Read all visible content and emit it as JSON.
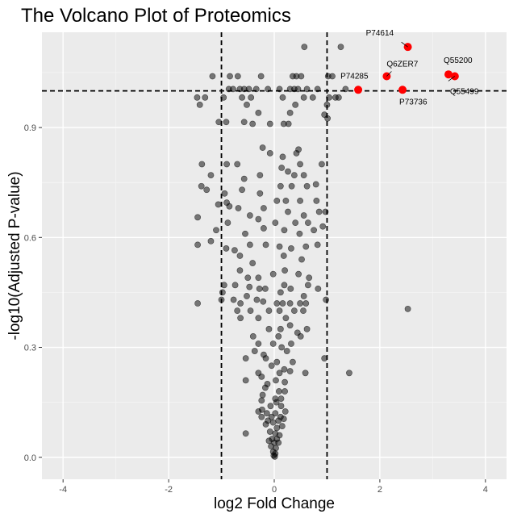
{
  "chart_data": {
    "type": "scatter",
    "title": "The Volcano Plot of Proteomics",
    "xlabel": "log2 Fold Change",
    "ylabel": "-log10(Adjusted P-value)",
    "xlim": [
      -4.4,
      4.4
    ],
    "ylim": [
      -0.06,
      1.16
    ],
    "x_ticks": [
      -4,
      -2,
      0,
      2,
      4
    ],
    "y_ticks": [
      0.0,
      0.3,
      0.6,
      0.9
    ],
    "y_tick_labels": [
      "0.0",
      "0.3",
      "0.6",
      "0.9"
    ],
    "x_tick_labels": [
      "-4",
      "-2",
      "0",
      "2",
      "4"
    ],
    "thresholds": {
      "log2fc": [
        -1,
        1
      ],
      "neg_log10_p": 1.0
    },
    "grid": true,
    "colors": {
      "panel_bg": "#ebebeb",
      "grid_major": "#ffffff",
      "significant": "#ff0000",
      "nonsignificant": "#000000"
    },
    "significant": [
      {
        "label": "P74614",
        "x": 2.53,
        "y": 1.12
      },
      {
        "label": "Q6ZER7",
        "x": 2.13,
        "y": 1.04
      },
      {
        "label": "Q55200",
        "x": 3.3,
        "y": 1.045
      },
      {
        "label": "Q55499",
        "x": 3.42,
        "y": 1.04
      },
      {
        "label": "P74285",
        "x": 1.59,
        "y": 1.003
      },
      {
        "label": "P73736",
        "x": 2.43,
        "y": 1.003
      }
    ],
    "nonsignificant": [
      [
        0.57,
        1.12
      ],
      [
        1.26,
        1.12
      ],
      [
        -1.17,
        1.04
      ],
      [
        -0.84,
        1.04
      ],
      [
        -0.69,
        1.04
      ],
      [
        -0.25,
        1.04
      ],
      [
        0.35,
        1.04
      ],
      [
        0.42,
        1.04
      ],
      [
        0.51,
        1.04
      ],
      [
        1.02,
        1.04
      ],
      [
        1.1,
        1.04
      ],
      [
        -0.86,
        1.005
      ],
      [
        -0.78,
        1.005
      ],
      [
        -0.65,
        1.005
      ],
      [
        -0.57,
        1.005
      ],
      [
        -0.48,
        1.005
      ],
      [
        -0.34,
        1.005
      ],
      [
        -0.12,
        1.005
      ],
      [
        0.1,
        1.005
      ],
      [
        0.3,
        1.005
      ],
      [
        0.38,
        1.005
      ],
      [
        0.45,
        1.005
      ],
      [
        0.62,
        1.005
      ],
      [
        0.82,
        1.005
      ],
      [
        1.35,
        1.005
      ],
      [
        -1.46,
        0.982
      ],
      [
        -1.31,
        0.982
      ],
      [
        -0.96,
        0.982
      ],
      [
        -0.61,
        0.982
      ],
      [
        -0.44,
        0.982
      ],
      [
        0.16,
        0.982
      ],
      [
        0.56,
        0.982
      ],
      [
        0.73,
        0.982
      ],
      [
        1.04,
        0.982
      ],
      [
        1.16,
        0.982
      ],
      [
        1.22,
        0.982
      ],
      [
        -1.41,
        0.962
      ],
      [
        -0.52,
        0.962
      ],
      [
        0.4,
        0.962
      ],
      [
        1.0,
        0.962
      ],
      [
        -0.3,
        0.94
      ],
      [
        0.3,
        0.94
      ],
      [
        0.95,
        0.935
      ],
      [
        -1.05,
        0.915
      ],
      [
        -0.91,
        0.915
      ],
      [
        -0.57,
        0.915
      ],
      [
        -0.41,
        0.91
      ],
      [
        -0.08,
        0.91
      ],
      [
        0.18,
        0.91
      ],
      [
        0.27,
        0.91
      ],
      [
        1.01,
        0.925
      ],
      [
        -0.22,
        0.845
      ],
      [
        0.46,
        0.84
      ],
      [
        -0.08,
        0.83
      ],
      [
        0.16,
        0.82
      ],
      [
        0.42,
        0.83
      ],
      [
        -1.37,
        0.8
      ],
      [
        -1.2,
        0.77
      ],
      [
        -0.9,
        0.8
      ],
      [
        -0.7,
        0.8
      ],
      [
        0.9,
        0.8
      ],
      [
        0.49,
        0.8
      ],
      [
        0.14,
        0.79
      ],
      [
        0.56,
        0.77
      ],
      [
        -0.57,
        0.76
      ],
      [
        -0.27,
        0.77
      ],
      [
        0.26,
        0.78
      ],
      [
        0.38,
        0.77
      ],
      [
        -1.38,
        0.74
      ],
      [
        -1.28,
        0.73
      ],
      [
        -0.94,
        0.72
      ],
      [
        -0.61,
        0.73
      ],
      [
        0.12,
        0.74
      ],
      [
        0.33,
        0.74
      ],
      [
        0.62,
        0.74
      ],
      [
        0.79,
        0.745
      ],
      [
        -0.9,
        0.695
      ],
      [
        -0.27,
        0.72
      ],
      [
        0.05,
        0.7
      ],
      [
        0.22,
        0.7
      ],
      [
        0.49,
        0.7
      ],
      [
        0.8,
        0.7
      ],
      [
        -1.06,
        0.69
      ],
      [
        -0.85,
        0.685
      ],
      [
        -0.68,
        0.68
      ],
      [
        -0.46,
        0.66
      ],
      [
        -0.2,
        0.68
      ],
      [
        0.26,
        0.67
      ],
      [
        0.56,
        0.66
      ],
      [
        0.85,
        0.67
      ],
      [
        0.97,
        0.67
      ],
      [
        -0.3,
        0.65
      ],
      [
        0.02,
        0.64
      ],
      [
        0.4,
        0.64
      ],
      [
        0.64,
        0.64
      ],
      [
        -0.2,
        0.625
      ],
      [
        0.19,
        0.62
      ],
      [
        0.48,
        0.61
      ],
      [
        -0.55,
        0.61
      ],
      [
        -1.45,
        0.655
      ],
      [
        -1.1,
        0.62
      ],
      [
        -0.88,
        0.64
      ],
      [
        0.75,
        0.62
      ],
      [
        0.92,
        0.63
      ],
      [
        -1.2,
        0.59
      ],
      [
        -1.45,
        0.58
      ],
      [
        -0.91,
        0.57
      ],
      [
        -0.75,
        0.565
      ],
      [
        -0.46,
        0.58
      ],
      [
        -0.16,
        0.58
      ],
      [
        0.1,
        0.575
      ],
      [
        0.32,
        0.57
      ],
      [
        0.6,
        0.575
      ],
      [
        0.82,
        0.58
      ],
      [
        -0.65,
        0.55
      ],
      [
        -0.41,
        0.53
      ],
      [
        0.18,
        0.55
      ],
      [
        0.52,
        0.54
      ],
      [
        -0.65,
        0.51
      ],
      [
        -0.5,
        0.49
      ],
      [
        -0.3,
        0.49
      ],
      [
        -0.02,
        0.5
      ],
      [
        0.2,
        0.51
      ],
      [
        0.46,
        0.5
      ],
      [
        0.66,
        0.49
      ],
      [
        -0.95,
        0.47
      ],
      [
        -0.74,
        0.47
      ],
      [
        -0.47,
        0.465
      ],
      [
        -0.28,
        0.46
      ],
      [
        -0.17,
        0.46
      ],
      [
        0.19,
        0.47
      ],
      [
        0.31,
        0.46
      ],
      [
        0.64,
        0.47
      ],
      [
        0.83,
        0.46
      ],
      [
        -0.98,
        0.45
      ],
      [
        -0.52,
        0.44
      ],
      [
        0.12,
        0.45
      ],
      [
        0.56,
        0.44
      ],
      [
        -1.45,
        0.42
      ],
      [
        -1.0,
        0.43
      ],
      [
        -0.77,
        0.43
      ],
      [
        -0.64,
        0.42
      ],
      [
        -0.33,
        0.43
      ],
      [
        -0.21,
        0.425
      ],
      [
        0.05,
        0.42
      ],
      [
        0.16,
        0.42
      ],
      [
        0.3,
        0.42
      ],
      [
        0.49,
        0.42
      ],
      [
        0.6,
        0.42
      ],
      [
        0.98,
        0.43
      ],
      [
        2.53,
        0.405
      ],
      [
        -0.7,
        0.4
      ],
      [
        -0.45,
        0.4
      ],
      [
        -0.1,
        0.4
      ],
      [
        0.1,
        0.4
      ],
      [
        0.38,
        0.4
      ],
      [
        0.55,
        0.4
      ],
      [
        -0.64,
        0.38
      ],
      [
        -0.3,
        0.38
      ],
      [
        0.22,
        0.38
      ],
      [
        -0.1,
        0.35
      ],
      [
        0.12,
        0.35
      ],
      [
        0.3,
        0.36
      ],
      [
        0.44,
        0.34
      ],
      [
        0.62,
        0.35
      ],
      [
        -0.4,
        0.33
      ],
      [
        0.08,
        0.33
      ],
      [
        0.5,
        0.33
      ],
      [
        -0.3,
        0.31
      ],
      [
        -0.02,
        0.31
      ],
      [
        0.14,
        0.3
      ],
      [
        0.32,
        0.31
      ],
      [
        -0.37,
        0.29
      ],
      [
        -0.2,
        0.28
      ],
      [
        0.24,
        0.29
      ],
      [
        -0.16,
        0.27
      ],
      [
        0.05,
        0.26
      ],
      [
        0.35,
        0.26
      ],
      [
        0.95,
        0.27
      ],
      [
        -0.54,
        0.27
      ],
      [
        -0.05,
        0.25
      ],
      [
        0.19,
        0.24
      ],
      [
        0.3,
        0.235
      ],
      [
        -0.3,
        0.23
      ],
      [
        0.1,
        0.23
      ],
      [
        0.59,
        0.23
      ],
      [
        1.42,
        0.23
      ],
      [
        -0.24,
        0.22
      ],
      [
        0.03,
        0.21
      ],
      [
        0.2,
        0.205
      ],
      [
        -0.54,
        0.21
      ],
      [
        -0.13,
        0.2
      ],
      [
        -0.17,
        0.19
      ],
      [
        0.09,
        0.18
      ],
      [
        0.2,
        0.18
      ],
      [
        -0.22,
        0.17
      ],
      [
        0.02,
        0.16
      ],
      [
        0.13,
        0.16
      ],
      [
        -0.24,
        0.155
      ],
      [
        0.04,
        0.15
      ],
      [
        -0.07,
        0.14
      ],
      [
        0.13,
        0.14
      ],
      [
        -0.23,
        0.13
      ],
      [
        0.02,
        0.12
      ],
      [
        0.21,
        0.125
      ],
      [
        -0.3,
        0.125
      ],
      [
        -0.14,
        0.12
      ],
      [
        -0.24,
        0.11
      ],
      [
        -0.05,
        0.11
      ],
      [
        0.12,
        0.11
      ],
      [
        0.18,
        0.105
      ],
      [
        -0.12,
        0.1
      ],
      [
        -0.02,
        0.095
      ],
      [
        0.08,
        0.1
      ],
      [
        -0.54,
        0.065
      ],
      [
        -0.16,
        0.09
      ],
      [
        0.05,
        0.08
      ],
      [
        0.15,
        0.085
      ],
      [
        -0.08,
        0.07
      ],
      [
        0.02,
        0.065
      ],
      [
        0.1,
        0.06
      ],
      [
        -0.04,
        0.05
      ],
      [
        0.05,
        0.05
      ],
      [
        -0.1,
        0.045
      ],
      [
        0.0,
        0.04
      ],
      [
        0.08,
        0.04
      ],
      [
        -0.06,
        0.03
      ],
      [
        0.03,
        0.025
      ],
      [
        -0.02,
        0.015
      ],
      [
        0.02,
        0.01
      ],
      [
        -0.01,
        0.005
      ],
      [
        0.01,
        0.002
      ]
    ]
  }
}
